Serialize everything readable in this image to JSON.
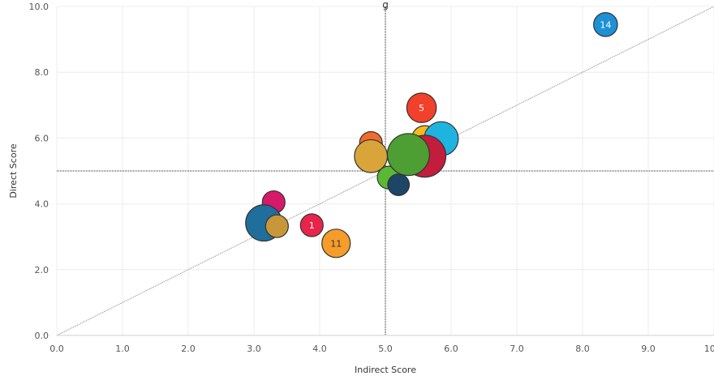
{
  "chart_data": {
    "type": "scatter",
    "title": "g",
    "xlabel": "Indirect Score",
    "ylabel": "Direct Score",
    "xlim": [
      0,
      10
    ],
    "ylim": [
      0,
      10
    ],
    "x_ticks": [
      "0.0",
      "1.0",
      "2.0",
      "3.0",
      "4.0",
      "5.0",
      "6.0",
      "7.0",
      "8.0",
      "9.0",
      "10.0"
    ],
    "y_ticks": [
      "0.0",
      "2.0",
      "4.0",
      "6.0",
      "8.0",
      "10.0"
    ],
    "grid": true,
    "reference_lines": {
      "vertical_x": 5.0,
      "horizontal_y": 5.0,
      "diagonal": "y = x"
    },
    "points": [
      {
        "x": 3.3,
        "y": 4.05,
        "size": 1.0,
        "color": "#d6196b",
        "label": ""
      },
      {
        "x": 3.15,
        "y": 3.42,
        "size": 1.6,
        "color": "#1f6e9c",
        "label": ""
      },
      {
        "x": 3.35,
        "y": 3.32,
        "size": 1.0,
        "color": "#c8973a",
        "label": ""
      },
      {
        "x": 3.88,
        "y": 3.35,
        "size": 1.0,
        "color": "#e8244a",
        "label": "1"
      },
      {
        "x": 4.25,
        "y": 2.8,
        "size": 1.25,
        "color": "#f59c2a",
        "label": "11"
      },
      {
        "x": 4.78,
        "y": 5.85,
        "size": 1.0,
        "color": "#f26b2c",
        "label": ""
      },
      {
        "x": 4.78,
        "y": 5.45,
        "size": 1.45,
        "color": "#d9a43a",
        "label": ""
      },
      {
        "x": 5.05,
        "y": 4.8,
        "size": 1.0,
        "color": "#5ab934",
        "label": ""
      },
      {
        "x": 5.2,
        "y": 4.58,
        "size": 0.95,
        "color": "#1d4566",
        "label": ""
      },
      {
        "x": 5.55,
        "y": 6.92,
        "size": 1.3,
        "color": "#f2412a",
        "label": "5"
      },
      {
        "x": 5.6,
        "y": 5.98,
        "size": 1.15,
        "color": "#f4b91d",
        "label": ""
      },
      {
        "x": 5.85,
        "y": 5.98,
        "size": 1.5,
        "color": "#1fb3e0",
        "label": ""
      },
      {
        "x": 5.6,
        "y": 5.45,
        "size": 1.85,
        "color": "#c21d3c",
        "label": ""
      },
      {
        "x": 5.35,
        "y": 5.5,
        "size": 1.85,
        "color": "#4d9e33",
        "label": ""
      },
      {
        "x": 8.35,
        "y": 9.45,
        "size": 1.05,
        "color": "#1e90d6",
        "label": "14"
      }
    ]
  }
}
